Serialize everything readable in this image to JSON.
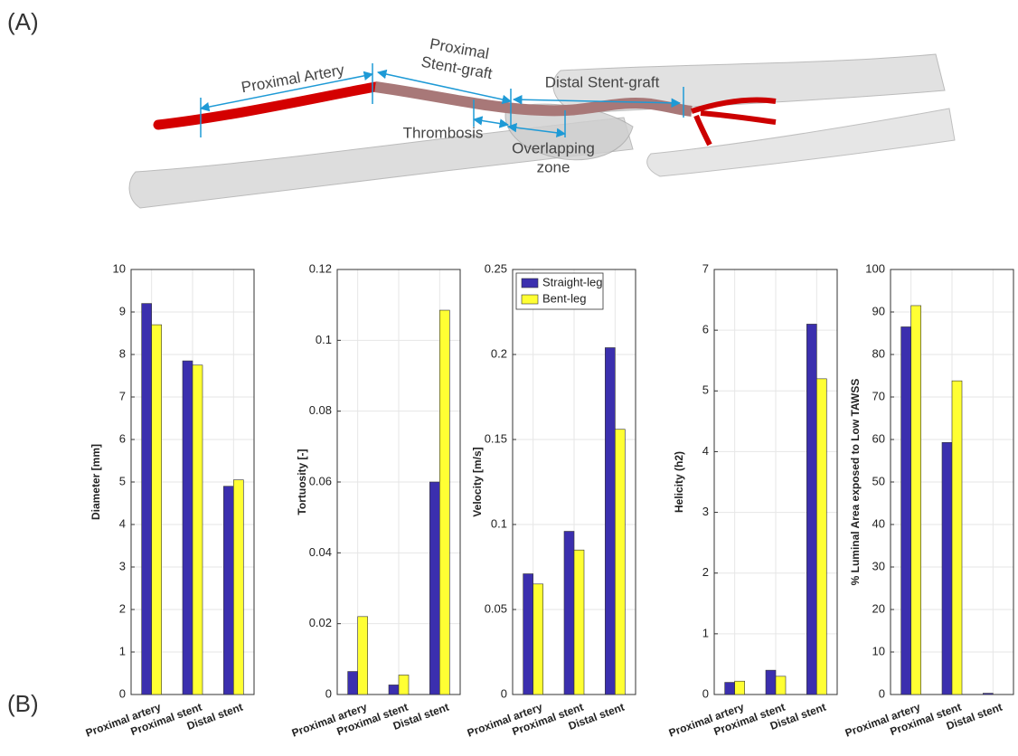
{
  "panel_labels": [
    "(A)",
    "(B)"
  ],
  "annotations": {
    "proximal_artery": [
      "Proximal Artery"
    ],
    "proximal_stent_graft": [
      "Proximal",
      "Stent-graft"
    ],
    "distal_stent_graft": [
      "Distal Stent-graft"
    ],
    "thrombosis": [
      "Thrombosis"
    ],
    "overlapping_zone": [
      "Overlapping",
      "zone"
    ]
  },
  "chart_data": [
    {
      "type": "bar",
      "ylabel": "Diameter [mm]",
      "categories": [
        "Proximal artery",
        "Proximal stent",
        "Distal stent"
      ],
      "series": [
        {
          "name": "Straight-leg",
          "color": "#3b2fae",
          "values": [
            9.2,
            7.85,
            4.9
          ]
        },
        {
          "name": "Bent-leg",
          "color": "#ffff33",
          "values": [
            8.7,
            7.75,
            5.05
          ]
        }
      ],
      "ylim": [
        0,
        10
      ],
      "yticks": [
        0,
        1,
        2,
        3,
        4,
        5,
        6,
        7,
        8,
        9,
        10
      ],
      "grid": true
    },
    {
      "type": "bar",
      "ylabel": "Tortuosity [-]",
      "categories": [
        "Proximal artery",
        "Proximal stent",
        "Distal stent"
      ],
      "series": [
        {
          "name": "Straight-leg",
          "color": "#3b2fae",
          "values": [
            0.0065,
            0.0027,
            0.06
          ]
        },
        {
          "name": "Bent-leg",
          "color": "#ffff33",
          "values": [
            0.022,
            0.0055,
            0.1085
          ]
        }
      ],
      "ylim": [
        0,
        0.12
      ],
      "yticks": [
        0,
        0.02,
        0.04,
        0.06,
        0.08,
        0.1,
        0.12
      ],
      "grid": true
    },
    {
      "type": "bar",
      "ylabel": "Velocity [m/s]",
      "categories": [
        "Proximal artery",
        "Proximal stent",
        "Distal stent"
      ],
      "series": [
        {
          "name": "Straight-leg",
          "color": "#3b2fae",
          "values": [
            0.071,
            0.096,
            0.204
          ]
        },
        {
          "name": "Bent-leg",
          "color": "#ffff33",
          "values": [
            0.065,
            0.085,
            0.156
          ]
        }
      ],
      "ylim": [
        0,
        0.25
      ],
      "yticks": [
        0,
        0.05,
        0.1,
        0.15,
        0.2,
        0.25
      ],
      "grid": true,
      "legend": "upper left"
    },
    {
      "type": "bar",
      "ylabel": "Helicity (h2)",
      "categories": [
        "Proximal artery",
        "Proximal stent",
        "Distal stent"
      ],
      "series": [
        {
          "name": "Straight-leg",
          "color": "#3b2fae",
          "values": [
            0.2,
            0.4,
            6.1
          ]
        },
        {
          "name": "Bent-leg",
          "color": "#ffff33",
          "values": [
            0.22,
            0.3,
            5.2
          ]
        }
      ],
      "ylim": [
        0,
        7
      ],
      "yticks": [
        0,
        1,
        2,
        3,
        4,
        5,
        6,
        7
      ],
      "grid": true
    },
    {
      "type": "bar",
      "ylabel": "% Luminal Area exposed to Low TAWSS",
      "categories": [
        "Proximal artery",
        "Proximal stent",
        "Distal stent"
      ],
      "series": [
        {
          "name": "Straight-leg",
          "color": "#3b2fae",
          "values": [
            86.5,
            59.3,
            0.3
          ]
        },
        {
          "name": "Bent-leg",
          "color": "#ffff33",
          "values": [
            91.5,
            73.8,
            0
          ]
        }
      ],
      "ylim": [
        0,
        100
      ],
      "yticks": [
        0,
        10,
        20,
        30,
        40,
        50,
        60,
        70,
        80,
        90,
        100
      ],
      "grid": true
    }
  ]
}
